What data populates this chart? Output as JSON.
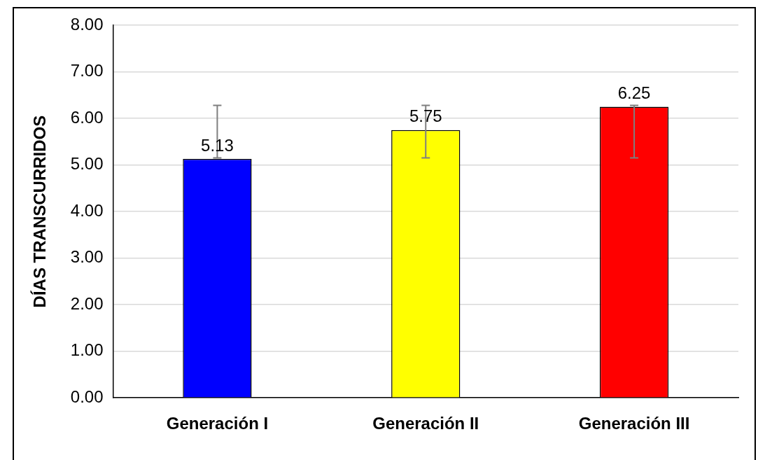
{
  "chart_data": {
    "type": "bar",
    "ylabel": "DÍAS TRANSCURRIDOS",
    "categories": [
      "Generación I",
      "Generación II",
      "Generación III"
    ],
    "values": [
      5.13,
      5.75,
      6.25
    ],
    "colors": [
      "#0000ff",
      "#ffff00",
      "#ff0000"
    ],
    "errors": [
      [
        5.15,
        6.28
      ],
      [
        5.15,
        6.28
      ],
      [
        5.15,
        6.28
      ]
    ],
    "data_labels": true,
    "value_labels": [
      "5.13",
      "5.75",
      "6.25"
    ],
    "ylim": [
      0,
      8
    ],
    "yticks": [
      {
        "value": 0,
        "label": "0.00"
      },
      {
        "value": 1,
        "label": "1.00"
      },
      {
        "value": 2,
        "label": "2.00"
      },
      {
        "value": 3,
        "label": "3.00"
      },
      {
        "value": 4,
        "label": "4.00"
      },
      {
        "value": 5,
        "label": "5.00"
      },
      {
        "value": 6,
        "label": "6.00"
      },
      {
        "value": 7,
        "label": "7.00"
      },
      {
        "value": 8,
        "label": "8.00"
      }
    ],
    "grid": "y",
    "legend": false
  }
}
